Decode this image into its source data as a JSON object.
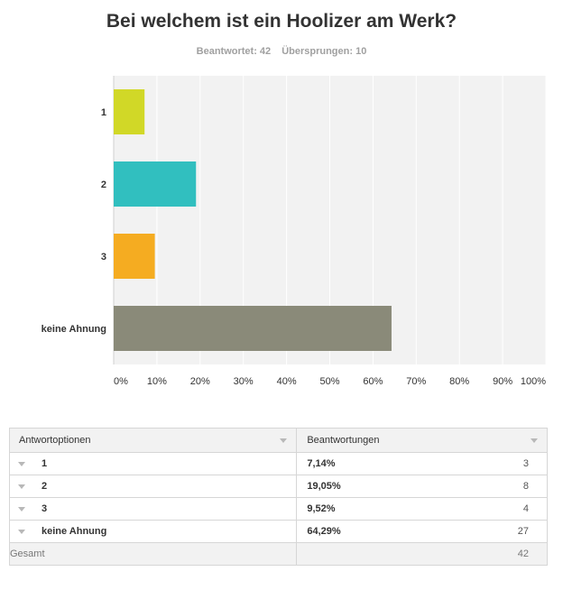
{
  "header": {
    "title": "Bei welchem ist ein Hoolizer am Werk?",
    "answered": "Beantwortet: 42",
    "skipped": "Übersprungen: 10"
  },
  "chart_data": {
    "type": "bar",
    "orientation": "horizontal",
    "categories": [
      "1",
      "2",
      "3",
      "keine Ahnung"
    ],
    "values": [
      7.14,
      19.05,
      9.52,
      64.29
    ],
    "colors": [
      "#d1d827",
      "#31bfbf",
      "#f5ac21",
      "#8a8a79"
    ],
    "xlim": [
      0,
      100
    ],
    "x_ticks": [
      "0%",
      "10%",
      "20%",
      "30%",
      "40%",
      "50%",
      "60%",
      "70%",
      "80%",
      "90%",
      "100%"
    ],
    "grid": "vertical",
    "title": "Bei welchem ist ein Hoolizer am Werk?"
  },
  "table": {
    "col_options": "Antwortoptionen",
    "col_answers": "Beantwortungen",
    "rows": [
      {
        "label": "1",
        "percent": "7,14%",
        "count": "3"
      },
      {
        "label": "2",
        "percent": "19,05%",
        "count": "8"
      },
      {
        "label": "3",
        "percent": "9,52%",
        "count": "4"
      },
      {
        "label": "keine Ahnung",
        "percent": "64,29%",
        "count": "27"
      }
    ],
    "total_label": "Gesamt",
    "total_value": "42"
  }
}
